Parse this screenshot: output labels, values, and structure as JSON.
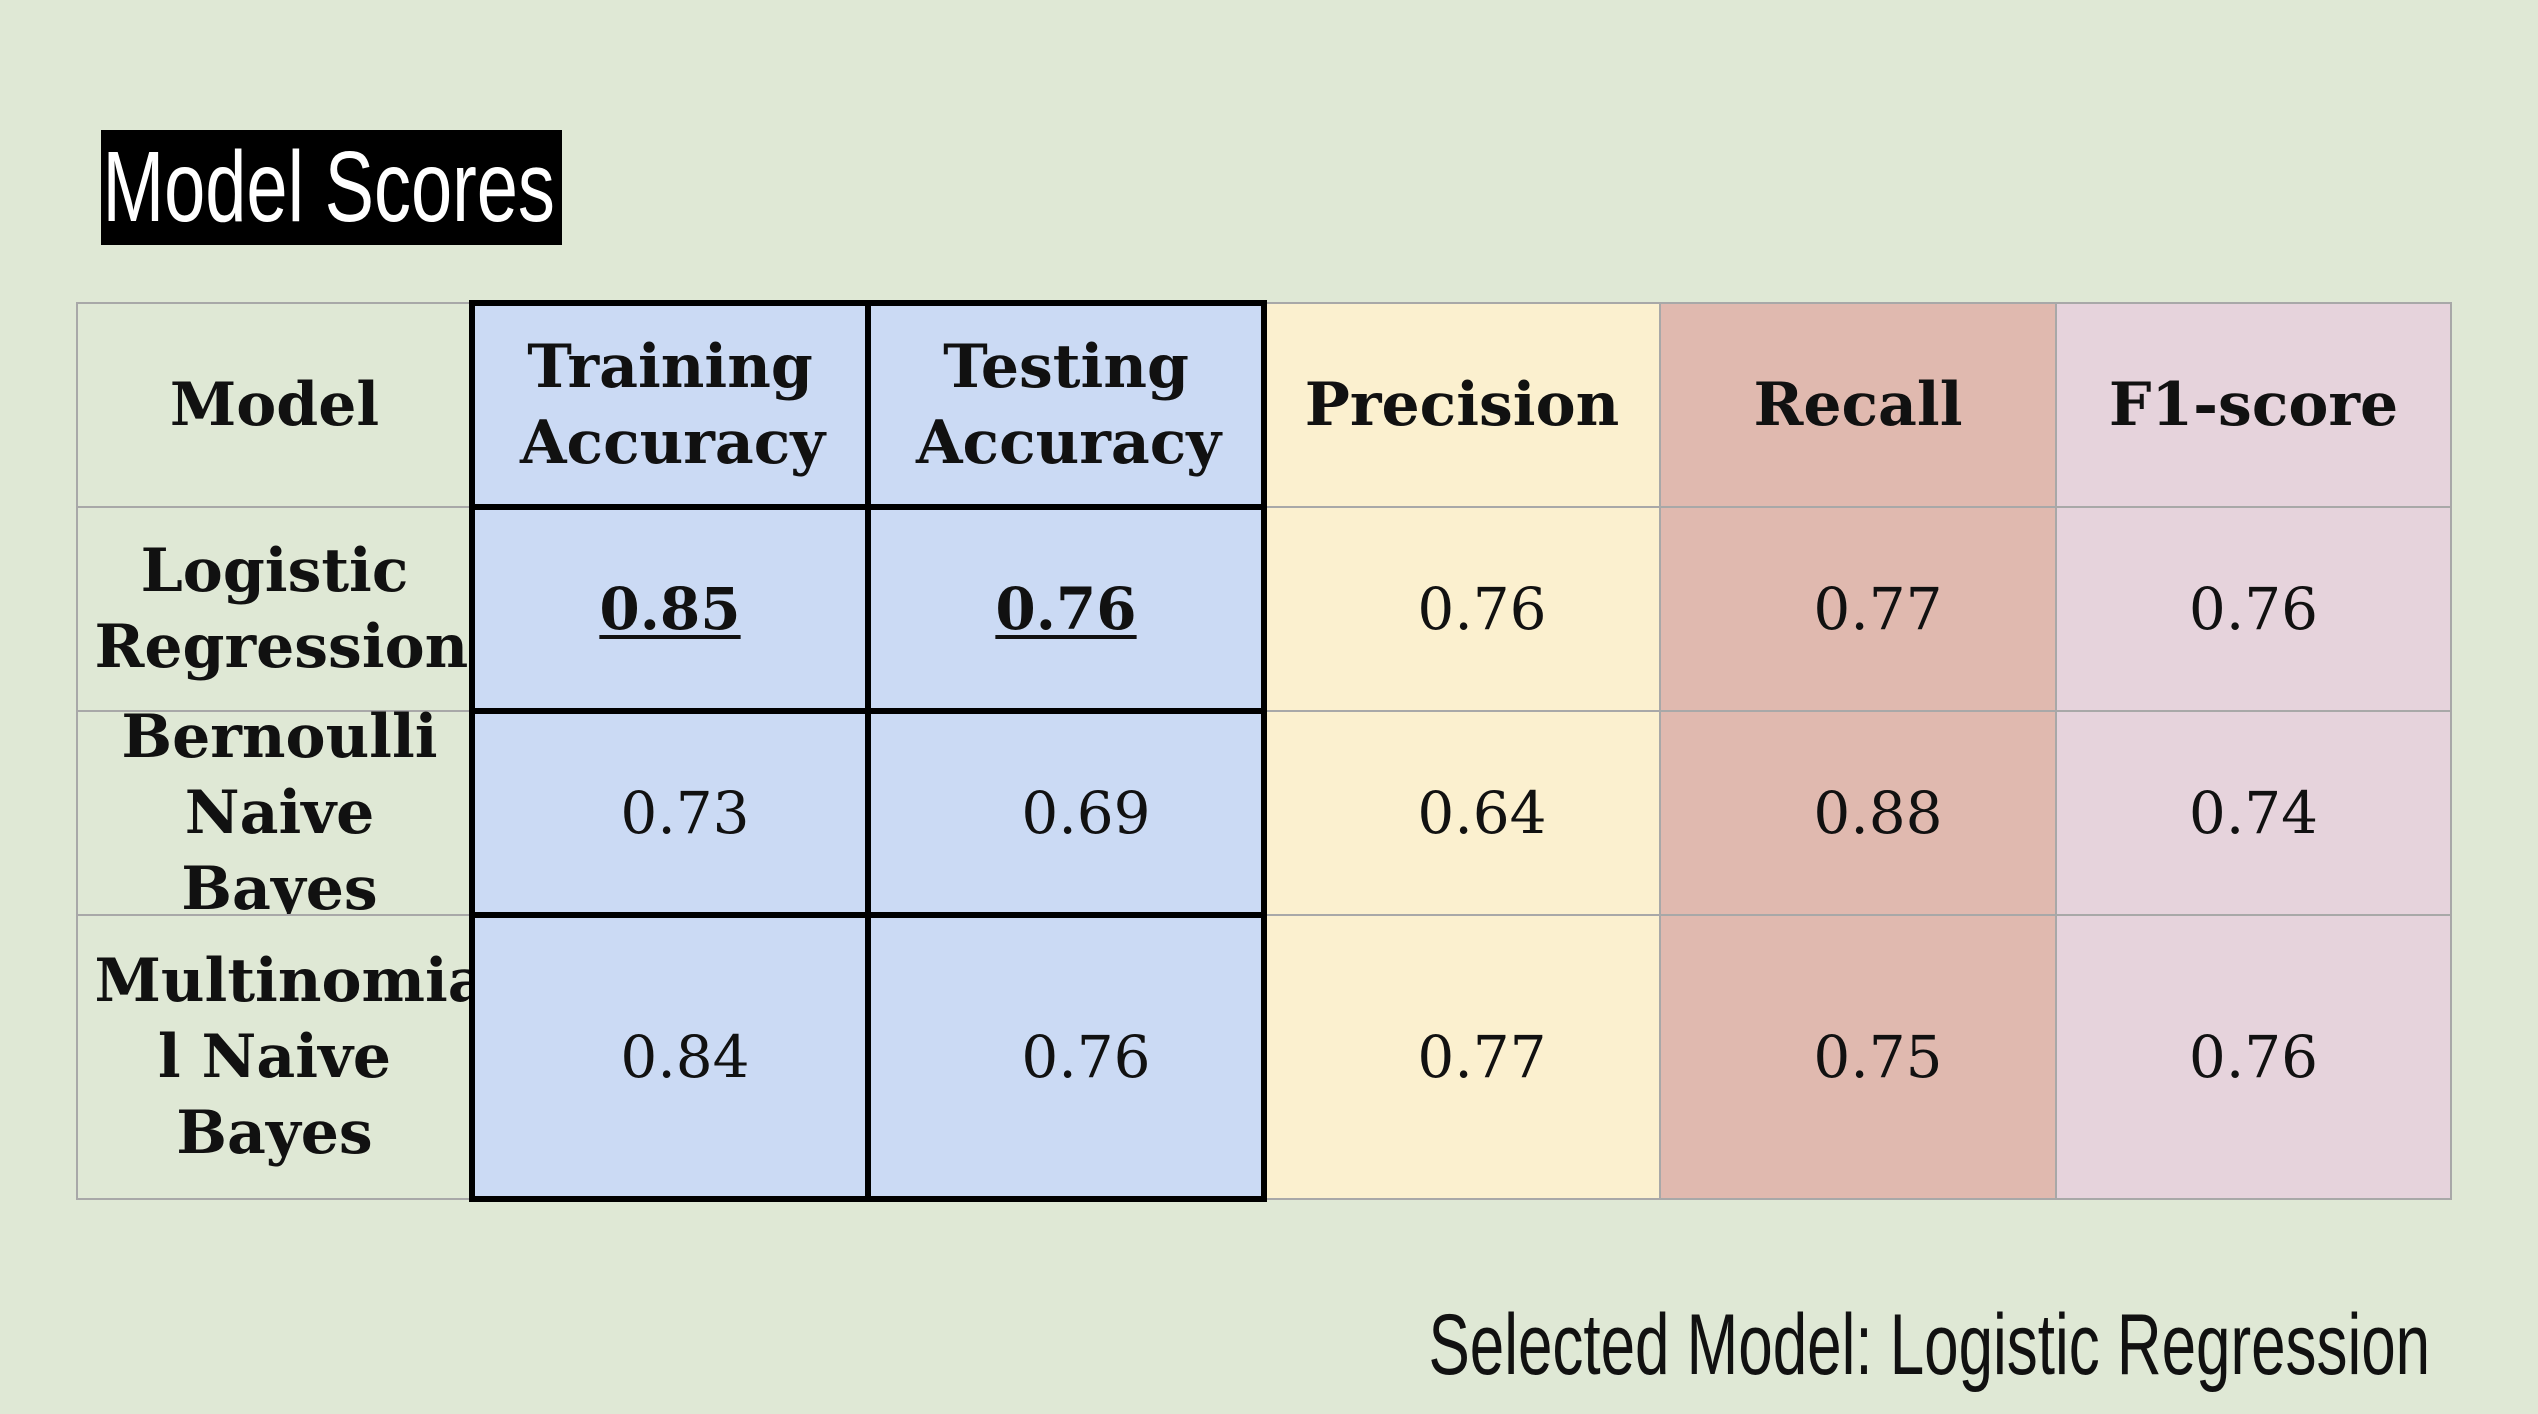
{
  "title": "Model Scores",
  "table": {
    "headers": [
      "Model",
      "Training Accuracy",
      "Testing Accuracy",
      "Precision",
      "Recall",
      "F1-score"
    ],
    "rows": [
      {
        "model": "Logistic Regression",
        "training_accuracy": "0.85",
        "testing_accuracy": "0.76",
        "precision": "0.76",
        "recall": "0.77",
        "f1_score": "0.76"
      },
      {
        "model": "Bernoulli Naive Bayes",
        "training_accuracy": "0.73",
        "testing_accuracy": "0.69",
        "precision": "0.64",
        "recall": "0.88",
        "f1_score": "0.74"
      },
      {
        "model": "Multinomia l Naive Bayes",
        "training_accuracy": "0.84",
        "testing_accuracy": "0.76",
        "precision": "0.77",
        "recall": "0.75",
        "f1_score": "0.76"
      }
    ],
    "column_colors": {
      "model": "#dfe8d5",
      "accuracy": "#cbdaf4",
      "precision": "#fbf0cf",
      "recall": "#e0b9af",
      "f1_score": "#e6d3dc"
    }
  },
  "footer": {
    "selected_model": "Selected Model: Logistic Regression"
  }
}
